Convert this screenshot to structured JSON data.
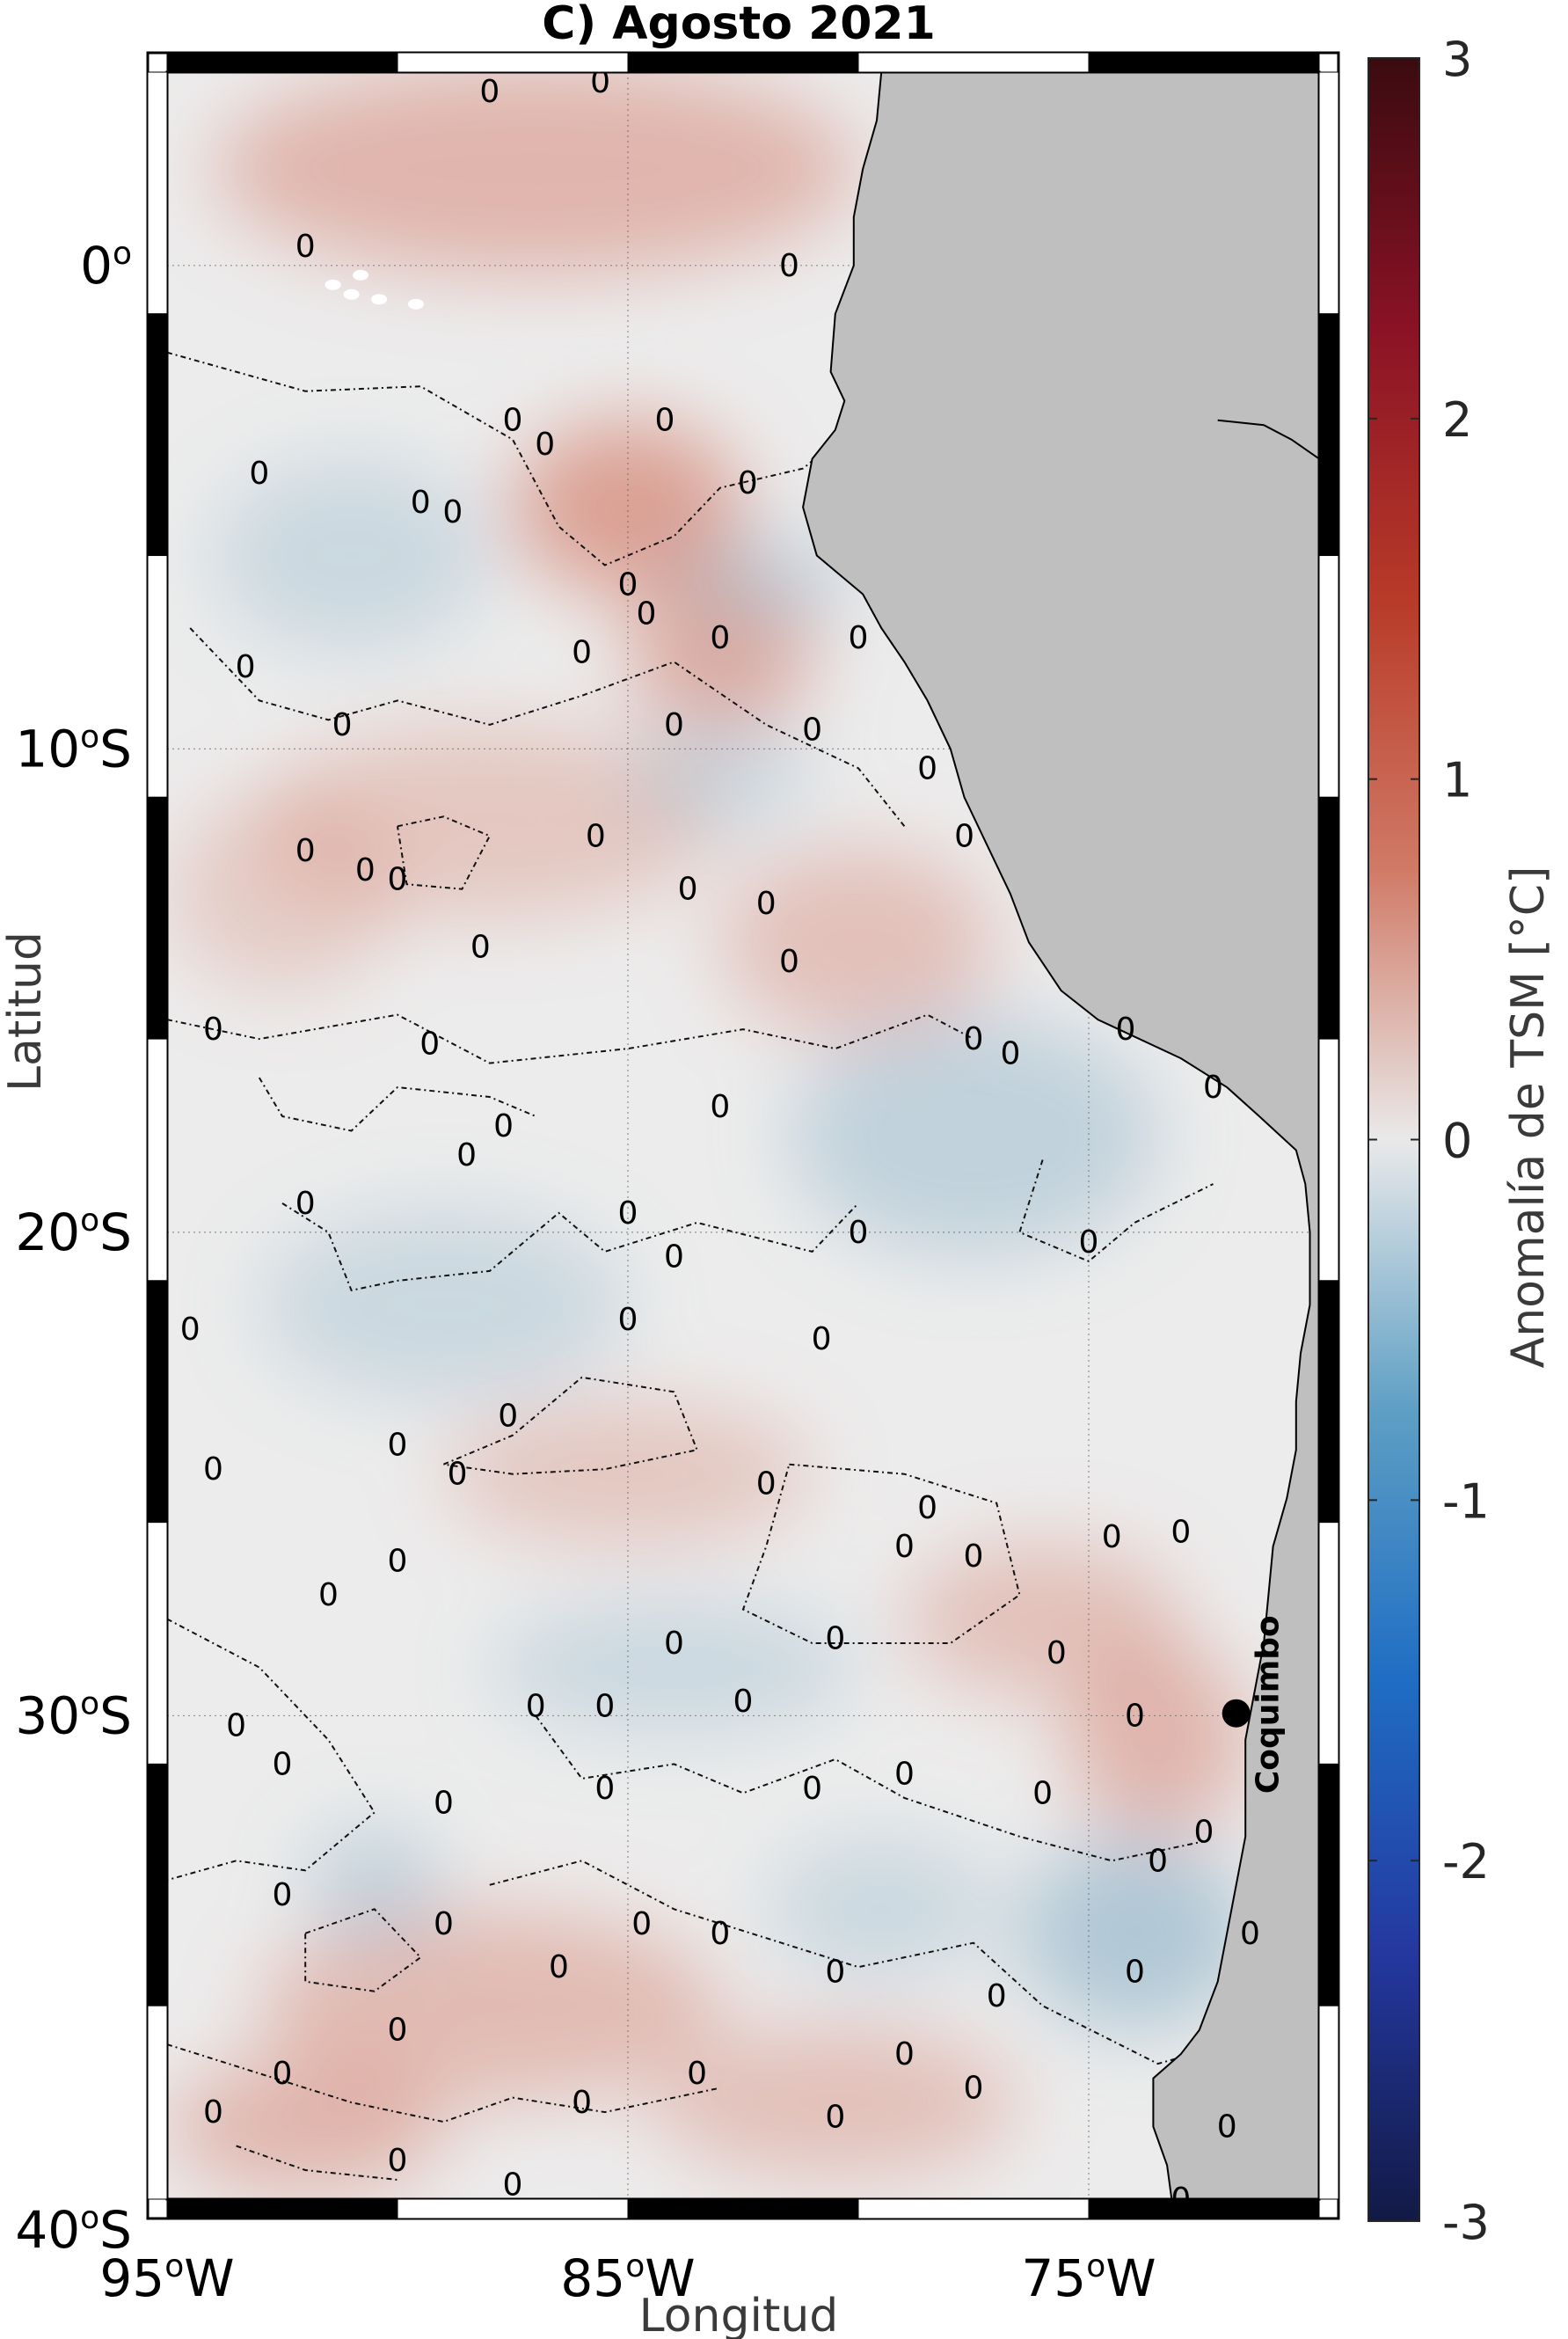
{
  "chart_data": {
    "type": "heatmap",
    "title": "C) Agosto 2021",
    "xlabel": "Longitud",
    "ylabel": "Latitud",
    "colorbar_label": "Anomalía de TSM [°C]",
    "xlim": [
      -95,
      -70
    ],
    "ylim": [
      -40,
      4
    ],
    "x_ticks": [
      {
        "value": -95,
        "label": "95",
        "suffix": "W"
      },
      {
        "value": -85,
        "label": "85",
        "suffix": "W"
      },
      {
        "value": -75,
        "label": "75",
        "suffix": "W"
      }
    ],
    "y_ticks": [
      {
        "value": 0,
        "label": "0",
        "suffix": ""
      },
      {
        "value": -10,
        "label": "10",
        "suffix": "S"
      },
      {
        "value": -20,
        "label": "20",
        "suffix": "S"
      },
      {
        "value": -30,
        "label": "30",
        "suffix": "S"
      },
      {
        "value": -40,
        "label": "40",
        "suffix": "S"
      }
    ],
    "colorbar": {
      "range": [
        -3,
        3
      ],
      "ticks": [
        3,
        2,
        1,
        0,
        -1,
        -2,
        -3
      ],
      "colors": [
        "#121a45",
        "#2438a0",
        "#1f6dc4",
        "#5e9fc4",
        "#e9e9e9",
        "#d07a66",
        "#b83a28",
        "#8a1225",
        "#3a0b10"
      ]
    },
    "contour_level": 0,
    "contour_label": "0",
    "grid": true,
    "land_color": "#bfbfbf",
    "warm_regions": [
      {
        "lon": -87.0,
        "lat": 2.0,
        "rlon": 7.0,
        "rlat": 2.2,
        "a": 0.5
      },
      {
        "lon": -85.0,
        "lat": -5.0,
        "rlon": 2.5,
        "rlat": 1.8,
        "a": 0.7
      },
      {
        "lon": -83.0,
        "lat": -8.0,
        "rlon": 2.0,
        "rlat": 1.6,
        "a": 0.6
      },
      {
        "lon": -88.0,
        "lat": -11.5,
        "rlon": 5.0,
        "rlat": 2.0,
        "a": 0.35
      },
      {
        "lon": -80.0,
        "lat": -14.0,
        "rlon": 3.0,
        "rlat": 2.0,
        "a": 0.4
      },
      {
        "lon": -85.0,
        "lat": -25.0,
        "rlon": 4.0,
        "rlat": 1.5,
        "a": 0.35
      },
      {
        "lon": -76.0,
        "lat": -28.0,
        "rlon": 3.0,
        "rlat": 1.6,
        "a": 0.4
      },
      {
        "lon": -73.5,
        "lat": -30.5,
        "rlon": 2.0,
        "rlat": 2.0,
        "a": 0.5
      },
      {
        "lon": -88.0,
        "lat": -36.0,
        "rlon": 5.0,
        "rlat": 2.0,
        "a": 0.45
      },
      {
        "lon": -92.0,
        "lat": -38.5,
        "rlon": 3.0,
        "rlat": 1.4,
        "a": 0.5
      },
      {
        "lon": -80.5,
        "lat": -38.0,
        "rlon": 4.0,
        "rlat": 1.6,
        "a": 0.4
      },
      {
        "lon": -92.5,
        "lat": -13.0,
        "rlon": 2.5,
        "rlat": 2.0,
        "a": 0.3
      }
    ],
    "cool_regions": [
      {
        "lon": -91.0,
        "lat": -6.0,
        "rlon": 3.0,
        "rlat": 2.0,
        "a": 0.3
      },
      {
        "lon": -82.0,
        "lat": -6.5,
        "rlon": 2.0,
        "rlat": 1.0,
        "a": 0.35
      },
      {
        "lon": -83.0,
        "lat": -10.5,
        "rlon": 2.0,
        "rlat": 1.2,
        "a": 0.3
      },
      {
        "lon": -77.5,
        "lat": -18.0,
        "rlon": 4.0,
        "rlat": 2.5,
        "a": 0.4
      },
      {
        "lon": -89.0,
        "lat": -21.5,
        "rlon": 4.0,
        "rlat": 2.0,
        "a": 0.3
      },
      {
        "lon": -84.0,
        "lat": -29.0,
        "rlon": 4.0,
        "rlat": 1.4,
        "a": 0.3
      },
      {
        "lon": -74.0,
        "lat": -34.5,
        "rlon": 2.5,
        "rlat": 2.0,
        "a": 0.55
      },
      {
        "lon": -79.5,
        "lat": -34.0,
        "rlon": 2.5,
        "rlat": 1.5,
        "a": 0.3
      },
      {
        "lon": -90.5,
        "lat": -33.5,
        "rlon": 1.5,
        "rlat": 1.2,
        "a": 0.4
      }
    ],
    "contours": [
      [
        [
          -95.0,
          -1.8
        ],
        [
          -92.0,
          -2.6
        ],
        [
          -89.5,
          -2.5
        ],
        [
          -87.5,
          -3.6
        ],
        [
          -86.5,
          -5.4
        ],
        [
          -85.5,
          -6.2
        ],
        [
          -84.0,
          -5.6
        ],
        [
          -83.0,
          -4.6
        ],
        [
          -81.2,
          -4.2
        ],
        [
          -80.3,
          -3.5
        ],
        [
          -79.6,
          -2.2
        ],
        [
          -79.5,
          -0.2
        ]
      ],
      [
        [
          -94.5,
          -7.5
        ],
        [
          -93.0,
          -9.0
        ],
        [
          -91.5,
          -9.4
        ],
        [
          -90.0,
          -9.0
        ],
        [
          -88.0,
          -9.5
        ],
        [
          -86.0,
          -8.9
        ],
        [
          -84.0,
          -8.2
        ],
        [
          -82.0,
          -9.5
        ],
        [
          -80.0,
          -10.4
        ],
        [
          -79.0,
          -11.6
        ]
      ],
      [
        [
          -90.0,
          -11.6
        ],
        [
          -89.0,
          -11.4
        ],
        [
          -88.0,
          -11.8
        ],
        [
          -88.6,
          -12.9
        ],
        [
          -89.8,
          -12.8
        ],
        [
          -90.0,
          -11.6
        ]
      ],
      [
        [
          -95.0,
          -15.6
        ],
        [
          -93.0,
          -16.0
        ],
        [
          -90.0,
          -15.5
        ],
        [
          -88.0,
          -16.5
        ],
        [
          -85.0,
          -16.2
        ],
        [
          -82.5,
          -15.8
        ],
        [
          -80.5,
          -16.2
        ],
        [
          -78.5,
          -15.5
        ],
        [
          -77.5,
          -16.0
        ]
      ],
      [
        [
          -93.0,
          -16.8
        ],
        [
          -92.5,
          -17.6
        ],
        [
          -91.0,
          -17.9
        ],
        [
          -90.0,
          -17.0
        ],
        [
          -88.0,
          -17.2
        ],
        [
          -87.0,
          -17.6
        ]
      ],
      [
        [
          -92.5,
          -19.4
        ],
        [
          -91.5,
          -20.0
        ],
        [
          -91.0,
          -21.2
        ],
        [
          -90.0,
          -21.0
        ],
        [
          -88.0,
          -20.8
        ],
        [
          -86.5,
          -19.6
        ],
        [
          -85.5,
          -20.4
        ],
        [
          -83.5,
          -19.8
        ],
        [
          -81.0,
          -20.4
        ],
        [
          -80.0,
          -19.4
        ]
      ],
      [
        [
          -76.0,
          -18.5
        ],
        [
          -76.5,
          -20.0
        ],
        [
          -75.0,
          -20.6
        ],
        [
          -74.0,
          -19.8
        ],
        [
          -72.3,
          -19.0
        ]
      ],
      [
        [
          -89.0,
          -24.8
        ],
        [
          -87.5,
          -24.2
        ],
        [
          -86.0,
          -23.0
        ],
        [
          -84.0,
          -23.3
        ],
        [
          -83.5,
          -24.5
        ],
        [
          -85.5,
          -24.9
        ],
        [
          -87.5,
          -25.0
        ],
        [
          -89.0,
          -24.8
        ]
      ],
      [
        [
          -81.5,
          -24.8
        ],
        [
          -79.0,
          -25.0
        ],
        [
          -77.0,
          -25.6
        ],
        [
          -76.5,
          -27.5
        ],
        [
          -78.0,
          -28.5
        ],
        [
          -81.0,
          -28.5
        ],
        [
          -82.5,
          -27.8
        ],
        [
          -82.0,
          -26.5
        ],
        [
          -81.5,
          -24.8
        ]
      ],
      [
        [
          -95.0,
          -28.0
        ],
        [
          -93.0,
          -29.0
        ],
        [
          -91.5,
          -30.5
        ],
        [
          -90.5,
          -32.0
        ],
        [
          -92.0,
          -33.2
        ],
        [
          -93.5,
          -33.0
        ],
        [
          -95.0,
          -33.4
        ]
      ],
      [
        [
          -87.0,
          -30.0
        ],
        [
          -86.0,
          -31.3
        ],
        [
          -84.0,
          -31.0
        ],
        [
          -82.5,
          -31.6
        ],
        [
          -80.5,
          -30.9
        ],
        [
          -79.0,
          -31.7
        ],
        [
          -76.5,
          -32.5
        ],
        [
          -74.5,
          -33.0
        ],
        [
          -72.5,
          -32.6
        ]
      ],
      [
        [
          -88.0,
          -33.5
        ],
        [
          -86.0,
          -33.0
        ],
        [
          -84.0,
          -34.0
        ],
        [
          -82.0,
          -34.6
        ],
        [
          -80.0,
          -35.2
        ],
        [
          -77.5,
          -34.7
        ],
        [
          -76.0,
          -36.0
        ],
        [
          -73.5,
          -37.2
        ],
        [
          -72.0,
          -36.8
        ]
      ],
      [
        [
          -92.0,
          -34.5
        ],
        [
          -90.5,
          -34.0
        ],
        [
          -89.5,
          -35.0
        ],
        [
          -90.5,
          -35.7
        ],
        [
          -92.0,
          -35.5
        ],
        [
          -92.0,
          -34.5
        ]
      ],
      [
        [
          -95.0,
          -36.8
        ],
        [
          -93.0,
          -37.4
        ],
        [
          -91.0,
          -38.0
        ],
        [
          -89.0,
          -38.4
        ],
        [
          -87.5,
          -37.9
        ],
        [
          -85.5,
          -38.2
        ],
        [
          -83.0,
          -37.7
        ]
      ],
      [
        [
          -93.5,
          -38.9
        ],
        [
          -92.0,
          -39.4
        ],
        [
          -90.0,
          -39.6
        ]
      ]
    ],
    "zero_labels": [
      [
        -92.0,
        0.4
      ],
      [
        -88.0,
        3.6
      ],
      [
        -85.6,
        3.8
      ],
      [
        -81.5,
        0.0
      ],
      [
        -87.5,
        -3.2
      ],
      [
        -86.8,
        -3.7
      ],
      [
        -84.2,
        -3.2
      ],
      [
        -89.5,
        -4.9
      ],
      [
        -88.8,
        -5.1
      ],
      [
        -93.0,
        -4.3
      ],
      [
        -82.4,
        -4.5
      ],
      [
        -85.0,
        -6.6
      ],
      [
        -84.6,
        -7.2
      ],
      [
        -83.0,
        -7.7
      ],
      [
        -80.0,
        -7.7
      ],
      [
        -86.0,
        -8.0
      ],
      [
        -93.3,
        -8.3
      ],
      [
        -91.2,
        -9.5
      ],
      [
        -84.0,
        -9.5
      ],
      [
        -81.0,
        -9.6
      ],
      [
        -78.5,
        -10.4
      ],
      [
        -77.7,
        -11.8
      ],
      [
        -92.0,
        -12.1
      ],
      [
        -85.7,
        -11.8
      ],
      [
        -90.7,
        -12.5
      ],
      [
        -90.0,
        -12.7
      ],
      [
        -83.7,
        -12.9
      ],
      [
        -82.0,
        -13.2
      ],
      [
        -81.5,
        -14.4
      ],
      [
        -88.2,
        -14.1
      ],
      [
        -94.0,
        -15.8
      ],
      [
        -89.3,
        -16.1
      ],
      [
        -87.7,
        -17.8
      ],
      [
        -83.0,
        -17.4
      ],
      [
        -77.5,
        -16.0
      ],
      [
        -76.7,
        -16.3
      ],
      [
        -74.2,
        -15.8
      ],
      [
        -72.3,
        -17.0
      ],
      [
        -88.5,
        -18.4
      ],
      [
        -92.0,
        -19.4
      ],
      [
        -85.0,
        -19.6
      ],
      [
        -84.0,
        -20.5
      ],
      [
        -80.0,
        -20.0
      ],
      [
        -75.0,
        -20.2
      ],
      [
        -85.0,
        -21.8
      ],
      [
        -80.8,
        -22.2
      ],
      [
        -94.5,
        -22.0
      ],
      [
        -90.0,
        -24.4
      ],
      [
        -87.6,
        -23.8
      ],
      [
        -82.0,
        -25.2
      ],
      [
        -78.5,
        -25.7
      ],
      [
        -79.0,
        -26.5
      ],
      [
        -77.5,
        -26.7
      ],
      [
        -94.0,
        -24.9
      ],
      [
        -88.7,
        -25.0
      ],
      [
        -90.0,
        -26.8
      ],
      [
        -91.5,
        -27.5
      ],
      [
        -73.0,
        -26.2
      ],
      [
        -74.5,
        -26.3
      ],
      [
        -80.5,
        -28.4
      ],
      [
        -84.0,
        -28.5
      ],
      [
        -82.5,
        -29.7
      ],
      [
        -87.0,
        -29.8
      ],
      [
        -85.5,
        -29.8
      ],
      [
        -75.7,
        -28.7
      ],
      [
        -74.0,
        -30.0
      ],
      [
        -93.5,
        -30.2
      ],
      [
        -92.5,
        -31.0
      ],
      [
        -89.0,
        -31.8
      ],
      [
        -85.5,
        -31.5
      ],
      [
        -81.0,
        -31.5
      ],
      [
        -79.0,
        -31.2
      ],
      [
        -76.0,
        -31.6
      ],
      [
        -72.5,
        -32.4
      ],
      [
        -73.5,
        -33.0
      ],
      [
        -92.5,
        -33.7
      ],
      [
        -89.0,
        -34.3
      ],
      [
        -86.5,
        -35.2
      ],
      [
        -84.7,
        -34.3
      ],
      [
        -83.0,
        -34.5
      ],
      [
        -80.5,
        -35.3
      ],
      [
        -77.0,
        -35.8
      ],
      [
        -74.0,
        -35.3
      ],
      [
        -71.5,
        -34.5
      ],
      [
        -90.0,
        -36.5
      ],
      [
        -94.0,
        -38.2
      ],
      [
        -92.5,
        -37.4
      ],
      [
        -86.0,
        -38.0
      ],
      [
        -83.5,
        -37.4
      ],
      [
        -80.5,
        -38.3
      ],
      [
        -79.0,
        -37.0
      ],
      [
        -77.5,
        -37.7
      ],
      [
        -72.0,
        -38.5
      ],
      [
        -73.0,
        -40.0
      ],
      [
        -87.5,
        -39.7
      ],
      [
        -90.0,
        -39.2
      ]
    ],
    "coast": [
      [
        -79.5,
        4.0
      ],
      [
        -79.6,
        3.0
      ],
      [
        -79.9,
        2.0
      ],
      [
        -80.1,
        1.0
      ],
      [
        -80.1,
        0.0
      ],
      [
        -80.5,
        -1.0
      ],
      [
        -80.6,
        -2.2
      ],
      [
        -80.3,
        -2.8
      ],
      [
        -80.5,
        -3.4
      ],
      [
        -81.0,
        -4.0
      ],
      [
        -81.2,
        -5.0
      ],
      [
        -80.9,
        -6.0
      ],
      [
        -79.9,
        -6.8
      ],
      [
        -79.5,
        -7.5
      ],
      [
        -79.0,
        -8.2
      ],
      [
        -78.5,
        -9.0
      ],
      [
        -78.0,
        -10.0
      ],
      [
        -77.7,
        -11.0
      ],
      [
        -77.2,
        -12.0
      ],
      [
        -76.7,
        -13.0
      ],
      [
        -76.3,
        -14.0
      ],
      [
        -75.6,
        -15.0
      ],
      [
        -74.8,
        -15.6
      ],
      [
        -73.0,
        -16.4
      ],
      [
        -72.0,
        -17.0
      ],
      [
        -71.3,
        -17.6
      ],
      [
        -70.5,
        -18.3
      ],
      [
        -70.3,
        -19.0
      ],
      [
        -70.2,
        -20.0
      ],
      [
        -70.2,
        -21.5
      ],
      [
        -70.4,
        -22.5
      ],
      [
        -70.5,
        -23.5
      ],
      [
        -70.5,
        -24.5
      ],
      [
        -70.7,
        -25.5
      ],
      [
        -71.0,
        -26.5
      ],
      [
        -71.1,
        -27.5
      ],
      [
        -71.2,
        -28.5
      ],
      [
        -71.4,
        -29.5
      ],
      [
        -71.6,
        -30.5
      ],
      [
        -71.6,
        -31.5
      ],
      [
        -71.6,
        -32.5
      ],
      [
        -71.8,
        -33.5
      ],
      [
        -72.0,
        -34.5
      ],
      [
        -72.2,
        -35.5
      ],
      [
        -72.6,
        -36.5
      ],
      [
        -73.0,
        -37.0
      ],
      [
        -73.6,
        -37.5
      ],
      [
        -73.6,
        -38.5
      ],
      [
        -73.3,
        -39.3
      ],
      [
        -73.2,
        -40.0
      ]
    ],
    "land_line": [
      [
        -72.2,
        -3.2
      ],
      [
        -71.2,
        -3.3
      ],
      [
        -70.6,
        -3.6
      ],
      [
        -70.0,
        -4.0
      ]
    ],
    "galapagos": [
      [
        -91.4,
        -0.4
      ],
      [
        -90.8,
        -0.2
      ],
      [
        -91.0,
        -0.6
      ],
      [
        -90.4,
        -0.7
      ],
      [
        -89.6,
        -0.8
      ]
    ],
    "marker": {
      "name": "Coquimbo",
      "lon": -71.8,
      "lat": -29.95
    }
  }
}
